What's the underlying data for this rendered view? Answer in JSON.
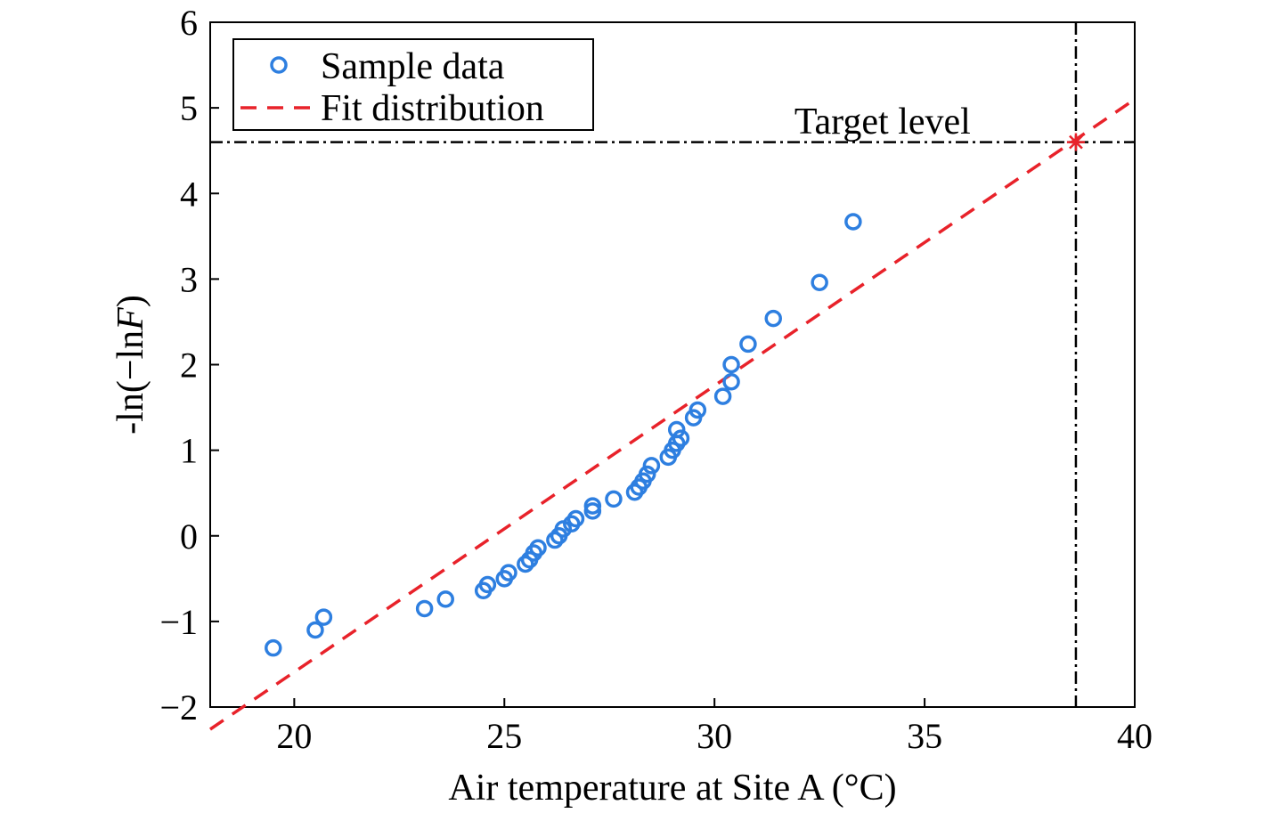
{
  "chart_data": {
    "type": "scatter",
    "title": "",
    "xlabel": "Air temperature at Site A (°C)",
    "ylabel_prefix": "-ln(−ln",
    "ylabel_var": "F",
    "ylabel_suffix": ")",
    "xlim": [
      18,
      40
    ],
    "ylim": [
      -2,
      6
    ],
    "xticks": [
      20,
      25,
      30,
      35,
      40
    ],
    "yticks": [
      -2,
      -1,
      0,
      1,
      2,
      3,
      4,
      5,
      6
    ],
    "ytick_labels": [
      "−2",
      "−1",
      "0",
      "1",
      "2",
      "3",
      "4",
      "5",
      "6"
    ],
    "grid": false,
    "legend_position": "top-left",
    "colors": {
      "sample": "#2e7fe0",
      "fit": "#e8222a",
      "reference": "#000000",
      "target_marker": "#e8222a"
    },
    "series": [
      {
        "name": "Sample data",
        "kind": "scatter",
        "marker": "circle",
        "x": [
          19.5,
          20.5,
          20.7,
          23.1,
          23.6,
          24.5,
          24.6,
          25.0,
          25.1,
          25.5,
          25.6,
          25.7,
          25.8,
          26.2,
          26.3,
          26.4,
          26.6,
          26.7,
          27.1,
          27.1,
          27.6,
          28.1,
          28.2,
          28.3,
          28.4,
          28.5,
          28.9,
          29.0,
          29.1,
          29.2,
          29.1,
          29.5,
          29.6,
          30.2,
          30.4,
          30.4,
          30.8,
          31.4,
          32.5,
          33.3
        ],
        "y": [
          -1.31,
          -1.1,
          -0.95,
          -0.85,
          -0.74,
          -0.64,
          -0.57,
          -0.5,
          -0.43,
          -0.33,
          -0.28,
          -0.2,
          -0.14,
          -0.05,
          0.0,
          0.08,
          0.14,
          0.2,
          0.29,
          0.35,
          0.43,
          0.51,
          0.57,
          0.64,
          0.72,
          0.82,
          0.92,
          1.0,
          1.08,
          1.14,
          1.24,
          1.38,
          1.47,
          1.63,
          1.8,
          2.0,
          2.24,
          2.54,
          2.96,
          3.67
        ]
      },
      {
        "name": "Fit distribution",
        "kind": "line",
        "style": "dashed",
        "x": [
          18,
          40
        ],
        "y": [
          -2.26,
          5.1
        ]
      }
    ],
    "reference_lines": [
      {
        "orientation": "horizontal",
        "value": 4.6,
        "style": "dash-dot"
      },
      {
        "orientation": "vertical",
        "value": 38.6,
        "style": "dash-dot"
      }
    ],
    "target_point": {
      "x": 38.6,
      "y": 4.6
    },
    "annotations": [
      {
        "text": "Target level",
        "x": 31.9,
        "y": 4.7
      }
    ]
  }
}
